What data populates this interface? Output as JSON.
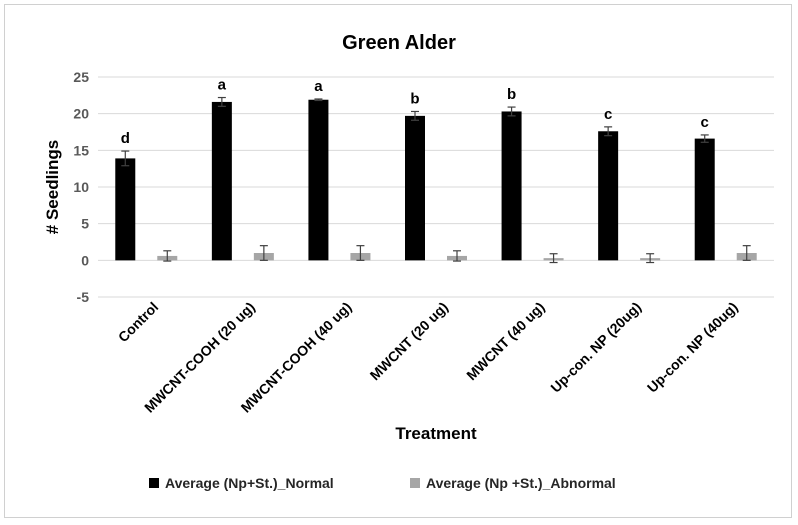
{
  "chart_data": {
    "type": "bar",
    "title": "Green Alder",
    "xlabel": "Treatment",
    "ylabel": "# Seedlings",
    "ylim": [
      -5,
      25
    ],
    "yticks": [
      -5,
      0,
      5,
      10,
      15,
      20,
      25
    ],
    "grid": true,
    "legend_position": "bottom",
    "categories": [
      "Control",
      "MWCNT-COOH (20 ug)",
      "MWCNT-COOH (40 ug)",
      "MWCNT (20 ug)",
      "MWCNT (40 ug)",
      "Up-con. NP (20ug)",
      "Up-con. NP (40ug)"
    ],
    "series": [
      {
        "name": "Average (Np+St.)_Normal",
        "color": "#000000",
        "values": [
          13.9,
          21.6,
          21.9,
          19.7,
          20.3,
          17.6,
          16.6
        ],
        "errors": [
          1.0,
          0.6,
          0.1,
          0.6,
          0.6,
          0.6,
          0.5
        ],
        "labels": [
          "d",
          "a",
          "a",
          "b",
          "b",
          "c",
          "c"
        ]
      },
      {
        "name": "Average (Np +St.)_Abnormal",
        "color": "#a6a6a6",
        "values": [
          0.6,
          1.0,
          1.0,
          0.6,
          0.3,
          0.3,
          1.0
        ],
        "errors": [
          0.7,
          1.0,
          1.0,
          0.7,
          0.6,
          0.6,
          1.0
        ]
      }
    ]
  }
}
